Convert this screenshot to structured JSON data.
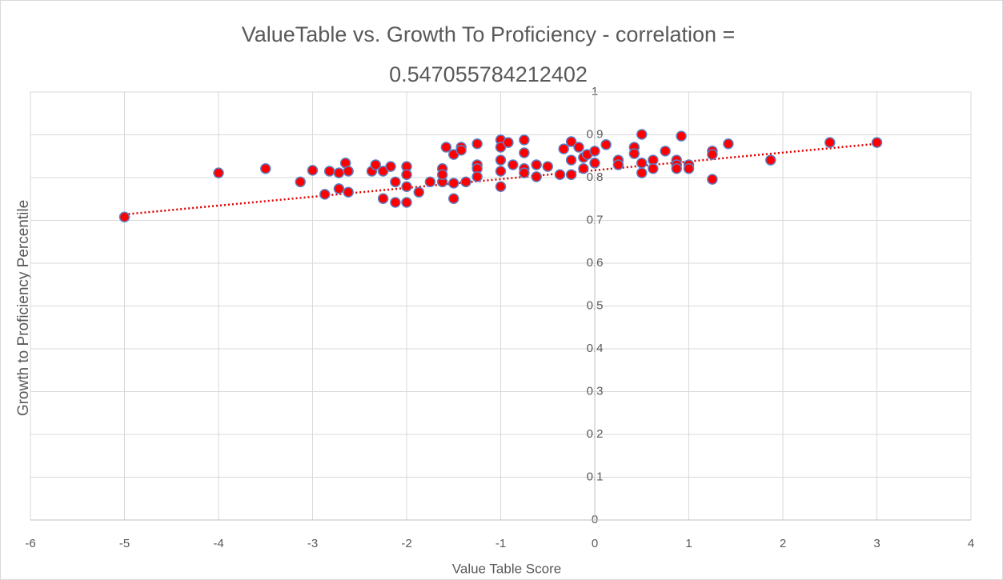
{
  "chart_data": {
    "type": "scatter",
    "title": "ValueTable vs. Growth To Proficiency - correlation = 0.547055784212402",
    "x_label": "Value Table Score",
    "y_label": "Growth to Proficiency Percentile",
    "x": [
      -5,
      -4,
      -3.5,
      -3.13,
      -3,
      -2.87,
      -2.82,
      -2.72,
      -2.72,
      -2.65,
      -2.62,
      -2.62,
      -2.37,
      -2.33,
      -2.25,
      -2.25,
      -2.17,
      -2.12,
      -2.12,
      -2,
      -2,
      -2,
      -2,
      -1.87,
      -1.75,
      -1.62,
      -1.62,
      -1.62,
      -1.58,
      -1.5,
      -1.5,
      -1.5,
      -1.42,
      -1.42,
      -1.37,
      -1.25,
      -1.25,
      -1.25,
      -1.25,
      -1,
      -1,
      -1,
      -1,
      -1,
      -0.92,
      -0.87,
      -0.75,
      -0.75,
      -0.75,
      -0.75,
      -0.62,
      -0.62,
      -0.5,
      -0.37,
      -0.33,
      -0.25,
      -0.25,
      -0.25,
      -0.17,
      -0.12,
      -0.12,
      -0.08,
      0,
      0,
      0.12,
      0.25,
      0.25,
      0.42,
      0.42,
      0.5,
      0.5,
      0.5,
      0.62,
      0.62,
      0.75,
      0.87,
      0.87,
      0.87,
      0.92,
      1,
      1,
      1.25,
      1.25,
      1.25,
      1.42,
      1.87,
      2.5,
      3
    ],
    "values": [
      0.708,
      0.811,
      0.821,
      0.79,
      0.817,
      0.761,
      0.815,
      0.811,
      0.774,
      0.834,
      0.815,
      0.766,
      0.815,
      0.83,
      0.815,
      0.751,
      0.826,
      0.79,
      0.742,
      0.826,
      0.807,
      0.779,
      0.742,
      0.766,
      0.79,
      0.79,
      0.821,
      0.807,
      0.871,
      0.854,
      0.787,
      0.751,
      0.871,
      0.864,
      0.79,
      0.879,
      0.83,
      0.821,
      0.802,
      0.888,
      0.871,
      0.841,
      0.815,
      0.779,
      0.882,
      0.83,
      0.888,
      0.858,
      0.821,
      0.811,
      0.83,
      0.802,
      0.826,
      0.807,
      0.867,
      0.884,
      0.841,
      0.807,
      0.871,
      0.847,
      0.821,
      0.854,
      0.862,
      0.834,
      0.877,
      0.841,
      0.83,
      0.871,
      0.856,
      0.901,
      0.834,
      0.811,
      0.841,
      0.821,
      0.862,
      0.841,
      0.83,
      0.821,
      0.897,
      0.83,
      0.821,
      0.862,
      0.854,
      0.796,
      0.879,
      0.841,
      0.882,
      0.882
    ],
    "color": "#ff0000",
    "edge_color": "#5b7fc4",
    "trendline": {
      "x": [
        -5,
        3
      ],
      "y": [
        0.714,
        0.879
      ],
      "color": "#e00000"
    },
    "xlim": [
      -6,
      4
    ],
    "xticks": [
      -6,
      -5,
      -4,
      -3,
      -2,
      -1,
      0,
      1,
      2,
      3,
      4
    ],
    "ylim": [
      0,
      1
    ],
    "yticks": [
      0,
      0.1,
      0.2,
      0.3,
      0.4,
      0.5,
      0.6,
      0.7,
      0.8,
      0.9,
      1
    ],
    "grid": true
  }
}
